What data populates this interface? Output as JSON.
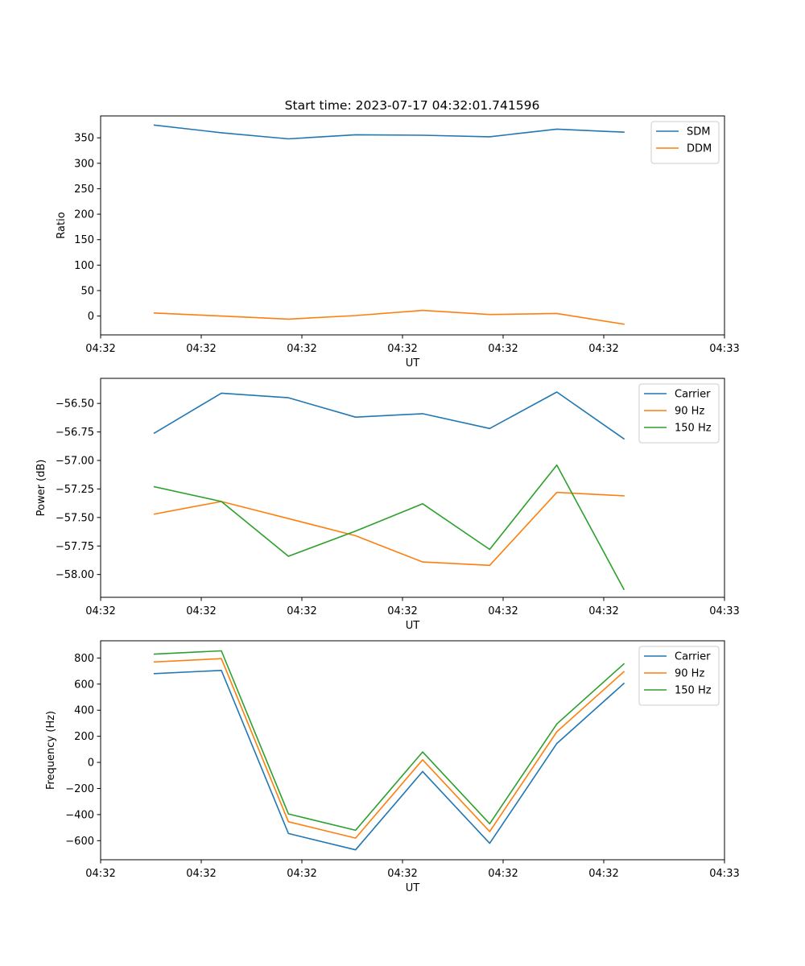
{
  "figure_title": "Start time: 2023-07-17 04:32:01.741596",
  "colors": {
    "blue": "#1f77b4",
    "orange": "#ff7f0e",
    "green": "#2ca02c"
  },
  "chart_data": [
    {
      "type": "line",
      "title": "Start time: 2023-07-17 04:32:01.741596",
      "xlabel": "UT",
      "ylabel": "Ratio",
      "x": [
        1,
        2,
        3,
        4,
        5,
        6,
        7,
        8
      ],
      "xlim": [
        0.2,
        9.5
      ],
      "xticks": [
        0.2,
        1.7,
        3.2,
        4.7,
        6.2,
        7.7,
        9.5
      ],
      "xtick_labels": [
        "04:32",
        "04:32",
        "04:32",
        "04:32",
        "04:32",
        "04:32",
        "04:33"
      ],
      "ylim": [
        -37,
        393
      ],
      "yticks": [
        0,
        50,
        100,
        150,
        200,
        250,
        300,
        350
      ],
      "ytick_labels": [
        "0",
        "50",
        "100",
        "150",
        "200",
        "250",
        "300",
        "350"
      ],
      "legend_position": "upper right",
      "series": [
        {
          "name": "SDM",
          "color": "#1f77b4",
          "values": [
            375,
            360,
            348,
            356,
            355,
            352,
            367,
            361
          ]
        },
        {
          "name": "DDM",
          "color": "#ff7f0e",
          "values": [
            6,
            0,
            -6,
            1,
            11,
            3,
            5,
            -16
          ]
        }
      ]
    },
    {
      "type": "line",
      "title": "",
      "xlabel": "UT",
      "ylabel": "Power (dB)",
      "x": [
        1,
        2,
        3,
        4,
        5,
        6,
        7,
        8
      ],
      "xlim": [
        0.2,
        9.5
      ],
      "xticks": [
        0.2,
        1.7,
        3.2,
        4.7,
        6.2,
        7.7,
        9.5
      ],
      "xtick_labels": [
        "04:32",
        "04:32",
        "04:32",
        "04:32",
        "04:32",
        "04:32",
        "04:33"
      ],
      "ylim": [
        -58.2,
        -56.28
      ],
      "yticks": [
        -58.0,
        -57.75,
        -57.5,
        -57.25,
        -57.0,
        -56.75,
        -56.5
      ],
      "ytick_labels": [
        "−58.00",
        "−57.75",
        "−57.50",
        "−57.25",
        "−57.00",
        "−56.75",
        "−56.50"
      ],
      "legend_position": "upper right",
      "series": [
        {
          "name": "Carrier",
          "color": "#1f77b4",
          "values": [
            -56.76,
            -56.41,
            -56.45,
            -56.62,
            -56.59,
            -56.72,
            -56.4,
            -56.81
          ]
        },
        {
          "name": "90 Hz",
          "color": "#ff7f0e",
          "values": [
            -57.47,
            -57.36,
            -57.51,
            -57.66,
            -57.89,
            -57.92,
            -57.28,
            -57.31
          ]
        },
        {
          "name": "150 Hz",
          "color": "#2ca02c",
          "values": [
            -57.23,
            -57.36,
            -57.84,
            -57.62,
            -57.38,
            -57.78,
            -57.04,
            -58.13
          ]
        }
      ]
    },
    {
      "type": "line",
      "title": "",
      "xlabel": "UT",
      "ylabel": "Frequency (Hz)",
      "x": [
        1,
        2,
        3,
        4,
        5,
        6,
        7,
        8
      ],
      "xlim": [
        0.2,
        9.5
      ],
      "xticks": [
        0.2,
        1.7,
        3.2,
        4.7,
        6.2,
        7.7,
        9.5
      ],
      "xtick_labels": [
        "04:32",
        "04:32",
        "04:32",
        "04:32",
        "04:32",
        "04:32",
        "04:33"
      ],
      "ylim": [
        -746,
        932
      ],
      "yticks": [
        -600,
        -400,
        -200,
        0,
        200,
        400,
        600,
        800
      ],
      "ytick_labels": [
        "−600",
        "−400",
        "−200",
        "0",
        "200",
        "400",
        "600",
        "800"
      ],
      "legend_position": "upper right",
      "series": [
        {
          "name": "Carrier",
          "color": "#1f77b4",
          "values": [
            680,
            705,
            -545,
            -670,
            -70,
            -620,
            145,
            605
          ]
        },
        {
          "name": "90 Hz",
          "color": "#ff7f0e",
          "values": [
            770,
            795,
            -455,
            -580,
            20,
            -530,
            235,
            695
          ]
        },
        {
          "name": "150 Hz",
          "color": "#2ca02c",
          "values": [
            830,
            855,
            -395,
            -520,
            80,
            -470,
            295,
            755
          ]
        }
      ]
    }
  ]
}
